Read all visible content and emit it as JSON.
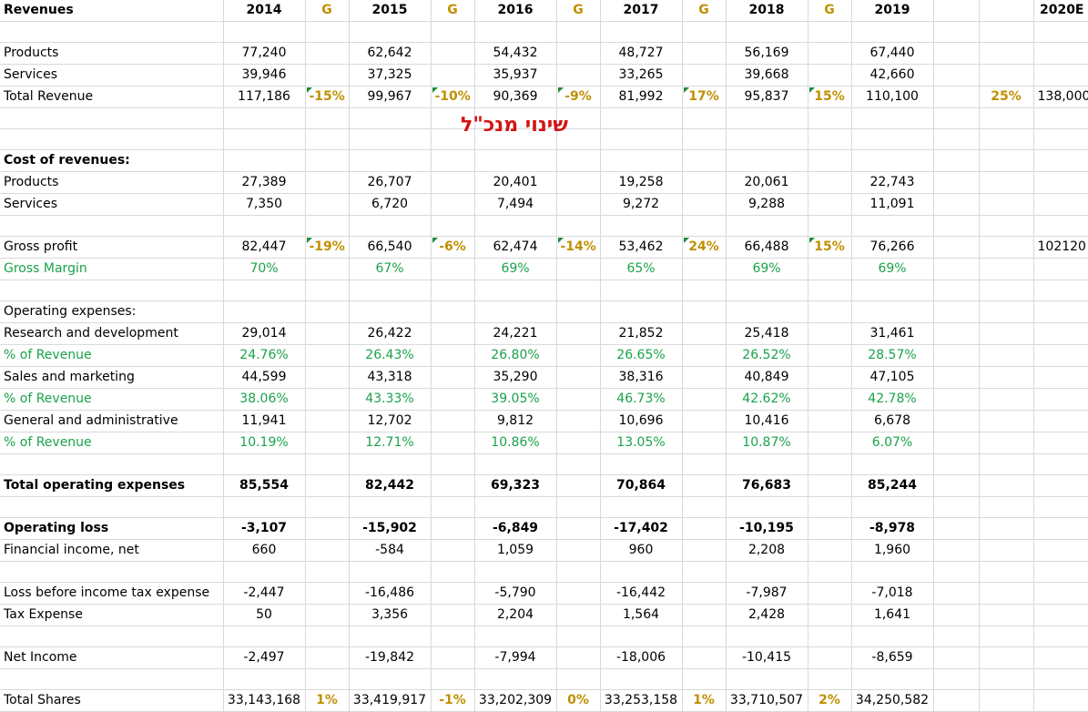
{
  "header": {
    "label": "Revenues",
    "years": [
      "2014",
      "2015",
      "2016",
      "2017",
      "2018",
      "2019"
    ],
    "g_label": "G",
    "estimate_year": "2020E"
  },
  "note": "שינוי מנכ\"ל",
  "revenue": {
    "products": {
      "label": "Products",
      "values": [
        "77,240",
        "62,642",
        "54,432",
        "48,727",
        "56,169",
        "67,440"
      ]
    },
    "services": {
      "label": "Services",
      "values": [
        "39,946",
        "37,325",
        "35,937",
        "33,265",
        "39,668",
        "42,660"
      ]
    },
    "total": {
      "label": "Total Revenue",
      "values": [
        "117,186",
        "99,967",
        "90,369",
        "81,992",
        "95,837",
        "110,100"
      ],
      "growth": [
        "-15%",
        "-10%",
        "-9%",
        "17%",
        "15%",
        "25%"
      ],
      "estimate": "138,000"
    }
  },
  "cost": {
    "title": "Cost of revenues:",
    "products": {
      "label": "Products",
      "values": [
        "27,389",
        "26,707",
        "20,401",
        "19,258",
        "20,061",
        "22,743"
      ]
    },
    "services": {
      "label": "Services",
      "values": [
        "7,350",
        "6,720",
        "7,494",
        "9,272",
        "9,288",
        "11,091"
      ]
    }
  },
  "gross": {
    "profit": {
      "label": "Gross profit",
      "values": [
        "82,447",
        "66,540",
        "62,474",
        "53,462",
        "66,488",
        "76,266"
      ],
      "growth": [
        "-19%",
        "-6%",
        "-14%",
        "24%",
        "15%"
      ],
      "estimate": "102120"
    },
    "margin": {
      "label": "Gross Margin",
      "values": [
        "70%",
        "67%",
        "69%",
        "65%",
        "69%",
        "69%"
      ]
    }
  },
  "opex": {
    "title": "Operating expenses:",
    "rd": {
      "label": "Research and development",
      "values": [
        "29,014",
        "26,422",
        "24,221",
        "21,852",
        "25,418",
        "31,461"
      ]
    },
    "rd_pct": {
      "label": "% of Revenue",
      "values": [
        "24.76%",
        "26.43%",
        "26.80%",
        "26.65%",
        "26.52%",
        "28.57%"
      ]
    },
    "sm": {
      "label": "Sales and marketing",
      "values": [
        "44,599",
        "43,318",
        "35,290",
        "38,316",
        "40,849",
        "47,105"
      ]
    },
    "sm_pct": {
      "label": "% of Revenue",
      "values": [
        "38.06%",
        "43.33%",
        "39.05%",
        "46.73%",
        "42.62%",
        "42.78%"
      ]
    },
    "ga": {
      "label": "General and administrative",
      "values": [
        "11,941",
        "12,702",
        "9,812",
        "10,696",
        "10,416",
        "6,678"
      ]
    },
    "ga_pct": {
      "label": "% of Revenue",
      "values": [
        "10.19%",
        "12.71%",
        "10.86%",
        "13.05%",
        "10.87%",
        "6.07%"
      ]
    },
    "total": {
      "label": "Total operating expenses",
      "values": [
        "85,554",
        "82,442",
        "69,323",
        "70,864",
        "76,683",
        "85,244"
      ]
    }
  },
  "operating": {
    "loss": {
      "label": "Operating loss",
      "values": [
        "-3,107",
        "-15,902",
        "-6,849",
        "-17,402",
        "-10,195",
        "-8,978"
      ]
    },
    "financial": {
      "label": "Financial income, net",
      "values": [
        "660",
        "-584",
        "1,059",
        "960",
        "2,208",
        "1,960"
      ]
    }
  },
  "tax": {
    "pretax": {
      "label": "Loss before income tax expense",
      "values": [
        "-2,447",
        "-16,486",
        "-5,790",
        "-16,442",
        "-7,987",
        "-7,018"
      ]
    },
    "expense": {
      "label": "Tax Expense",
      "values": [
        "50",
        "3,356",
        "2,204",
        "1,564",
        "2,428",
        "1,641"
      ]
    }
  },
  "net": {
    "label": "Net Income",
    "values": [
      "-2,497",
      "-19,842",
      "-7,994",
      "-18,006",
      "-10,415",
      "-8,659"
    ]
  },
  "shares": {
    "label": "Total Shares",
    "values": [
      "33,143,168",
      "33,419,917",
      "33,202,309",
      "33,253,158",
      "33,710,507",
      "34,250,582"
    ],
    "growth": [
      "1%",
      "-1%",
      "0%",
      "1%",
      "2%"
    ]
  }
}
